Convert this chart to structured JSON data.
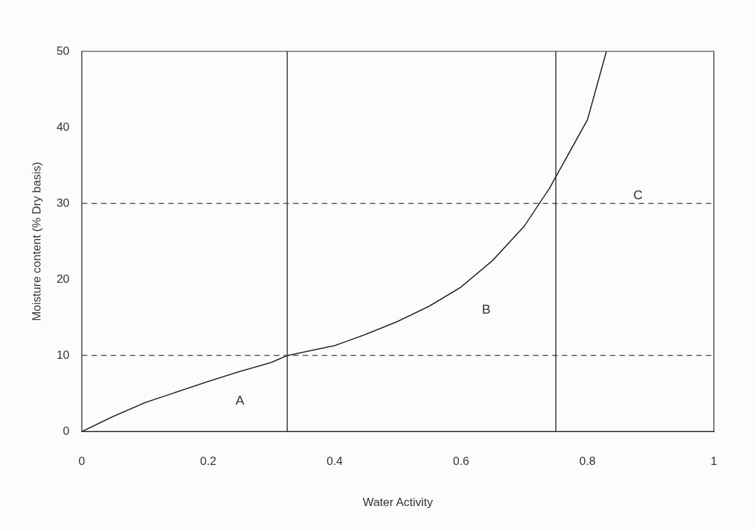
{
  "chart_data": {
    "type": "line",
    "xlabel": "Water Activity",
    "ylabel": "Moisture content (% Dry basis)",
    "x": [
      0,
      0.05,
      0.1,
      0.15,
      0.2,
      0.25,
      0.3,
      0.325,
      0.4,
      0.45,
      0.5,
      0.55,
      0.6,
      0.65,
      0.7,
      0.74,
      0.78,
      0.8,
      0.82,
      0.83
    ],
    "series": [
      {
        "color": "#222222",
        "values": [
          0,
          2,
          3.8,
          5.2,
          6.6,
          7.9,
          9.1,
          10,
          11.3,
          12.8,
          14.5,
          16.5,
          19,
          22.5,
          27,
          32,
          38,
          41,
          47,
          50
        ]
      }
    ],
    "xlim": [
      0,
      1
    ],
    "ylim": [
      0,
      50
    ],
    "xticks": [
      0,
      0.2,
      0.4,
      0.6,
      0.8,
      1
    ],
    "yticks": [
      0,
      10,
      20,
      30,
      40,
      50
    ],
    "grid": false,
    "legend": false,
    "marker": "none",
    "line_style": "solid",
    "ref_lines": [
      {
        "axis": "x",
        "value": 0.325,
        "line_style": "solid",
        "color": "#222222"
      },
      {
        "axis": "x",
        "value": 0.75,
        "line_style": "solid",
        "color": "#222222"
      },
      {
        "axis": "y",
        "value": 10,
        "line_style": "dashed",
        "color": "#333333"
      },
      {
        "axis": "y",
        "value": 30,
        "line_style": "dashed",
        "color": "#333333"
      }
    ],
    "annotations": [
      "A",
      "B",
      "C"
    ]
  }
}
